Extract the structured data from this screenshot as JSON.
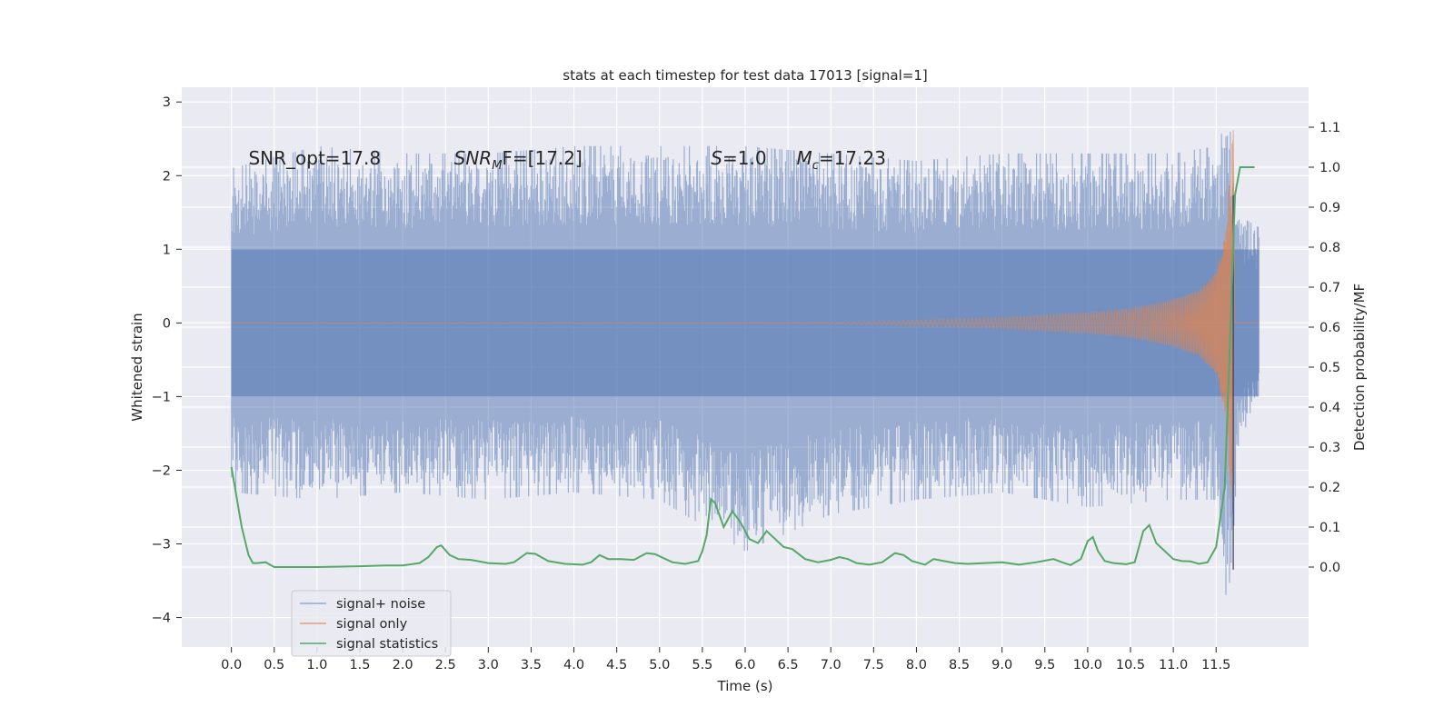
{
  "chart_data": {
    "type": "line",
    "title": "stats at each timestep for test data 17013 [signal=1]",
    "xlabel": "Time (s)",
    "ylabel_left": "Whitened strain",
    "ylabel_right": "Detection probability/MF",
    "xlim": [
      -0.58,
      12.58
    ],
    "ylim_left": [
      -4.4,
      3.2
    ],
    "ylim_right": [
      -0.2,
      1.2
    ],
    "x_ticks": [
      0.0,
      0.5,
      1.0,
      1.5,
      2.0,
      2.5,
      3.0,
      3.5,
      4.0,
      4.5,
      5.0,
      5.5,
      6.0,
      6.5,
      7.0,
      7.5,
      8.0,
      8.5,
      9.0,
      9.5,
      10.0,
      10.5,
      11.0,
      11.5
    ],
    "x_tick_labels": [
      "0.0",
      "0.5",
      "1.0",
      "1.5",
      "2.0",
      "2.5",
      "3.0",
      "3.5",
      "4.0",
      "4.5",
      "5.0",
      "5.5",
      "6.0",
      "6.5",
      "7.0",
      "7.5",
      "8.0",
      "8.5",
      "9.0",
      "9.5",
      "10.0",
      "10.5",
      "11.0",
      "11.5"
    ],
    "y_left_ticks": [
      3,
      2,
      1,
      0,
      -1,
      -2,
      -3,
      -4
    ],
    "y_left_tick_labels": [
      "3",
      "2",
      "1",
      "0",
      "−1",
      "−2",
      "−3",
      "−4"
    ],
    "y_right_ticks": [
      1.1,
      1.0,
      0.9,
      0.8,
      0.7,
      0.6,
      0.5,
      0.4,
      0.3,
      0.2,
      0.1,
      0.0
    ],
    "y_right_tick_labels": [
      "1.1",
      "1.0",
      "0.9",
      "0.8",
      "0.7",
      "0.6",
      "0.5",
      "0.4",
      "0.3",
      "0.2",
      "0.1",
      "0.0"
    ],
    "grid": true,
    "legend_position": "lower-left",
    "annotations": [
      {
        "text": "SNR_opt=17.8",
        "x": 0.2,
        "y": 2.15
      },
      {
        "text": "SNR",
        "sub": "M",
        "tail": "F=[17.2]",
        "italic": true,
        "x": 2.6,
        "y": 2.15
      },
      {
        "text": "S",
        "tail": "=1.0",
        "italic": true,
        "x": 5.6,
        "y": 2.15
      },
      {
        "text": "M",
        "sub": "c",
        "tail": "=17.23",
        "italic": true,
        "x": 6.6,
        "y": 2.15
      }
    ],
    "series": [
      {
        "name": "signal+ noise",
        "color": "#4c72b0",
        "axis": "left",
        "description_envelope": {
          "x": [
            0.0,
            1.0,
            2.0,
            3.0,
            4.0,
            5.0,
            6.0,
            7.0,
            8.0,
            9.0,
            10.0,
            11.0,
            11.5,
            11.65,
            11.75,
            11.85,
            12.0
          ],
          "y_max": [
            2.1,
            2.4,
            2.3,
            2.3,
            2.4,
            2.4,
            2.4,
            2.3,
            2.2,
            2.3,
            2.3,
            2.3,
            2.4,
            2.8,
            1.5,
            1.4,
            1.3
          ],
          "y_min": [
            -2.3,
            -2.4,
            -2.3,
            -2.4,
            -2.3,
            -2.4,
            -3.1,
            -2.6,
            -2.4,
            -2.3,
            -2.5,
            -2.4,
            -2.4,
            -4.1,
            -1.8,
            -1.4,
            -1.1
          ]
        }
      },
      {
        "name": "signal only",
        "color": "#dd8452",
        "axis": "left",
        "description_envelope": {
          "x": [
            0.0,
            7.0,
            8.0,
            9.0,
            10.0,
            10.5,
            11.0,
            11.3,
            11.5,
            11.6,
            11.65,
            11.7,
            11.72,
            12.0
          ],
          "amplitude": [
            0.0,
            0.01,
            0.04,
            0.08,
            0.14,
            0.2,
            0.32,
            0.45,
            0.7,
            1.2,
            2.0,
            2.65,
            0.0,
            0.0
          ]
        }
      },
      {
        "name": "signal statistics",
        "color": "#55a868",
        "axis": "right",
        "x": [
          0.0,
          0.12,
          0.2,
          0.25,
          0.3,
          0.4,
          0.5,
          1.0,
          1.5,
          1.8,
          2.0,
          2.2,
          2.3,
          2.4,
          2.45,
          2.55,
          2.65,
          2.8,
          3.0,
          3.2,
          3.3,
          3.45,
          3.55,
          3.7,
          3.9,
          4.1,
          4.2,
          4.3,
          4.4,
          4.55,
          4.7,
          4.85,
          4.95,
          5.05,
          5.15,
          5.3,
          5.45,
          5.5,
          5.55,
          5.6,
          5.65,
          5.75,
          5.85,
          5.95,
          6.05,
          6.15,
          6.25,
          6.35,
          6.45,
          6.55,
          6.7,
          6.85,
          7.0,
          7.1,
          7.2,
          7.3,
          7.45,
          7.6,
          7.75,
          7.85,
          7.95,
          8.1,
          8.2,
          8.3,
          8.45,
          8.6,
          8.8,
          9.0,
          9.2,
          9.4,
          9.6,
          9.7,
          9.8,
          9.92,
          10.0,
          10.06,
          10.12,
          10.2,
          10.3,
          10.45,
          10.55,
          10.65,
          10.72,
          10.8,
          10.9,
          11.0,
          11.1,
          11.2,
          11.3,
          11.4,
          11.5,
          11.6,
          11.66,
          11.72,
          11.78,
          11.86,
          11.95
        ],
        "y": [
          0.25,
          0.1,
          0.03,
          0.01,
          0.01,
          0.012,
          0.0,
          0.0,
          0.002,
          0.004,
          0.004,
          0.01,
          0.025,
          0.05,
          0.054,
          0.03,
          0.02,
          0.018,
          0.01,
          0.008,
          0.012,
          0.035,
          0.033,
          0.015,
          0.008,
          0.006,
          0.012,
          0.03,
          0.02,
          0.02,
          0.018,
          0.035,
          0.032,
          0.022,
          0.012,
          0.008,
          0.015,
          0.04,
          0.08,
          0.17,
          0.16,
          0.1,
          0.14,
          0.11,
          0.07,
          0.06,
          0.09,
          0.07,
          0.05,
          0.045,
          0.02,
          0.012,
          0.018,
          0.025,
          0.02,
          0.01,
          0.006,
          0.012,
          0.035,
          0.03,
          0.015,
          0.006,
          0.02,
          0.016,
          0.01,
          0.008,
          0.01,
          0.012,
          0.006,
          0.012,
          0.02,
          0.012,
          0.005,
          0.02,
          0.065,
          0.075,
          0.04,
          0.015,
          0.01,
          0.007,
          0.012,
          0.09,
          0.105,
          0.06,
          0.04,
          0.02,
          0.015,
          0.014,
          0.008,
          0.012,
          0.05,
          0.2,
          0.55,
          0.93,
          1.0,
          1.0,
          1.0
        ]
      }
    ]
  }
}
